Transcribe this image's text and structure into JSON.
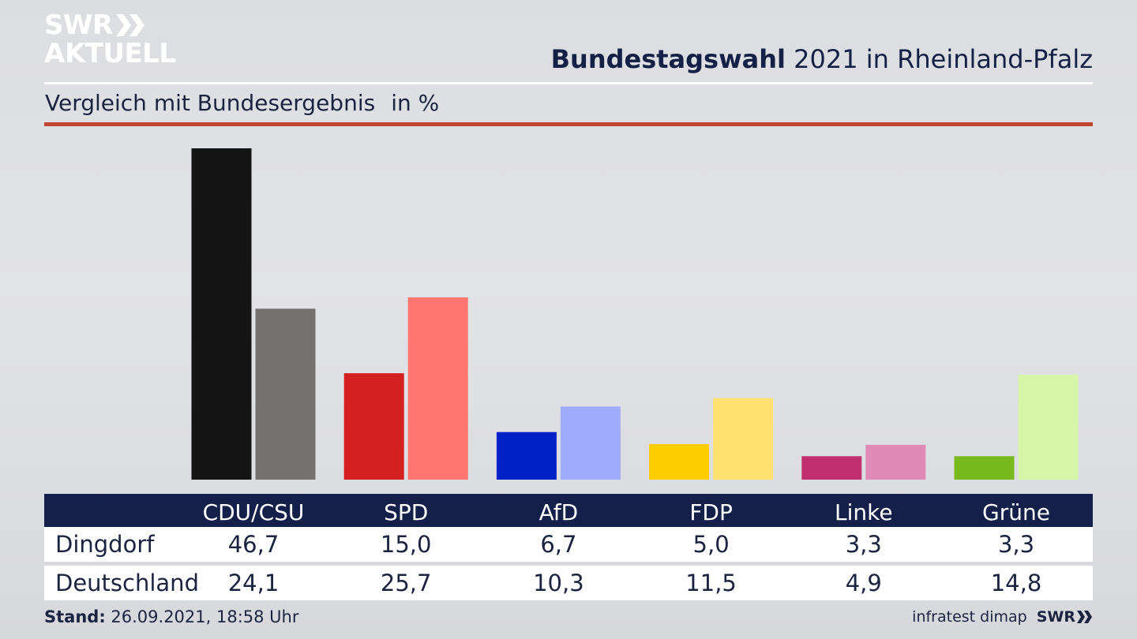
{
  "logo": {
    "line1": "SWR",
    "line2": "AKTUELL"
  },
  "title": {
    "bold": "Bundestagswahl",
    "rest": " 2021 in Rheinland-Pfalz"
  },
  "subtitle": {
    "text": "Vergleich mit Bundesergebnis",
    "unit": "in %"
  },
  "footer": {
    "stand_label": "Stand:",
    "stand_value": " 26.09.2021, 18:58 Uhr"
  },
  "source": {
    "text": "infratest dimap",
    "brand": "SWR"
  },
  "chart_data": {
    "type": "bar",
    "title": "Bundestagswahl 2021 in Rheinland-Pfalz",
    "subtitle": "Vergleich mit Bundesergebnis",
    "unit": "in %",
    "categories": [
      "CDU/CSU",
      "SPD",
      "AfD",
      "FDP",
      "Linke",
      "Grüne"
    ],
    "series": [
      {
        "name": "Dingdorf",
        "values": [
          46.7,
          15.0,
          6.7,
          5.0,
          3.3,
          3.3
        ],
        "labels": [
          "46,7",
          "15,0",
          "6,7",
          "5,0",
          "3,3",
          "3,3"
        ],
        "colors": [
          "#141414",
          "#d42020",
          "#0022c8",
          "#ffcc00",
          "#c0306e",
          "#78b91e"
        ]
      },
      {
        "name": "Deutschland",
        "values": [
          24.1,
          25.7,
          10.3,
          11.5,
          4.9,
          14.8
        ],
        "labels": [
          "24,1",
          "25,7",
          "10,3",
          "11,5",
          "4,9",
          "14,8"
        ],
        "colors": [
          "#737270",
          "#ff7670",
          "#9eacff",
          "#ffe071",
          "#e08ab8",
          "#d6f5a6"
        ]
      }
    ],
    "ylim": [
      0,
      46.7
    ],
    "grid": false,
    "legend": "table below chart"
  }
}
